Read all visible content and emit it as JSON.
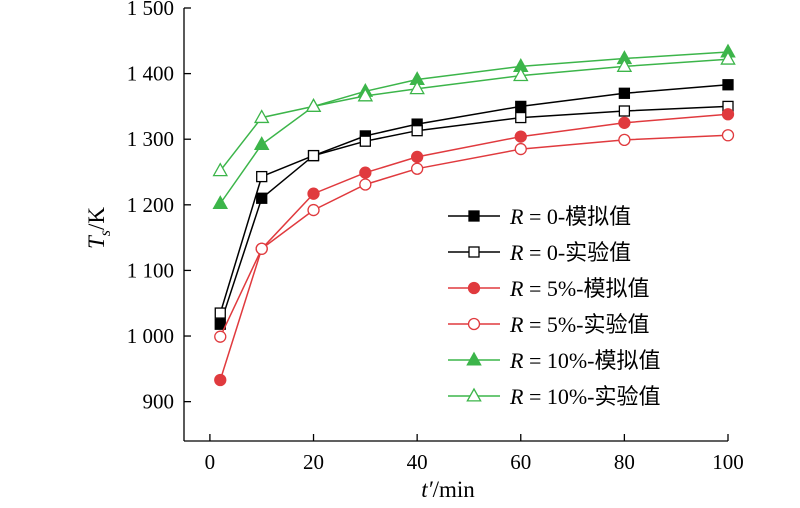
{
  "chart_data": {
    "type": "line",
    "x_label": "t′/min",
    "y_label": "T_s/K",
    "xlim": [
      -5,
      100
    ],
    "ylim": [
      840,
      1500
    ],
    "x_ticks": [
      0,
      20,
      40,
      60,
      80,
      100
    ],
    "y_ticks": [
      900,
      1000,
      1100,
      1200,
      1300,
      1400,
      1500
    ],
    "y_tick_labels": [
      "900",
      "1 000",
      "1 100",
      "1 200",
      "1 300",
      "1 400",
      "1 500"
    ],
    "legend_position": "right-center",
    "grid": false,
    "series": [
      {
        "name": "R = 0-模拟值",
        "label_var": "R",
        "label_rest": " = 0-模拟值",
        "color": "#000000",
        "marker": "square",
        "filled": true,
        "x": [
          2,
          10,
          20,
          30,
          40,
          60,
          80,
          100
        ],
        "y": [
          1018,
          1210,
          1275,
          1305,
          1323,
          1350,
          1370,
          1383
        ]
      },
      {
        "name": "R = 0-实验值",
        "label_var": "R",
        "label_rest": " = 0-实验值",
        "color": "#000000",
        "marker": "square",
        "filled": false,
        "x": [
          2,
          10,
          20,
          30,
          40,
          60,
          80,
          100
        ],
        "y": [
          1035,
          1243,
          1275,
          1297,
          1313,
          1333,
          1343,
          1350
        ]
      },
      {
        "name": "R = 5%-模拟值",
        "label_var": "R",
        "label_rest": " = 5%-模拟值",
        "color": "#e03a3e",
        "marker": "circle",
        "filled": true,
        "x": [
          2,
          10,
          20,
          30,
          40,
          60,
          80,
          100
        ],
        "y": [
          933,
          1133,
          1217,
          1249,
          1273,
          1304,
          1325,
          1338
        ]
      },
      {
        "name": "R = 5%-实验值",
        "label_var": "R",
        "label_rest": " = 5%-实验值",
        "color": "#e03a3e",
        "marker": "circle",
        "filled": false,
        "x": [
          2,
          10,
          20,
          30,
          40,
          60,
          80,
          100
        ],
        "y": [
          999,
          1133,
          1192,
          1231,
          1255,
          1285,
          1299,
          1306
        ]
      },
      {
        "name": "R = 10%-模拟值",
        "label_var": "R",
        "label_rest": " = 10%-模拟值",
        "color": "#3cb54a",
        "marker": "triangle",
        "filled": true,
        "x": [
          2,
          10,
          20,
          30,
          40,
          60,
          80,
          100
        ],
        "y": [
          1202,
          1292,
          1350,
          1373,
          1391,
          1411,
          1423,
          1433
        ]
      },
      {
        "name": "R = 10%-实验值",
        "label_var": "R",
        "label_rest": " = 10%-实验值",
        "color": "#3cb54a",
        "marker": "triangle",
        "filled": false,
        "x": [
          2,
          10,
          20,
          30,
          40,
          60,
          80,
          100
        ],
        "y": [
          1252,
          1333,
          1350,
          1366,
          1377,
          1397,
          1411,
          1422
        ]
      }
    ]
  }
}
